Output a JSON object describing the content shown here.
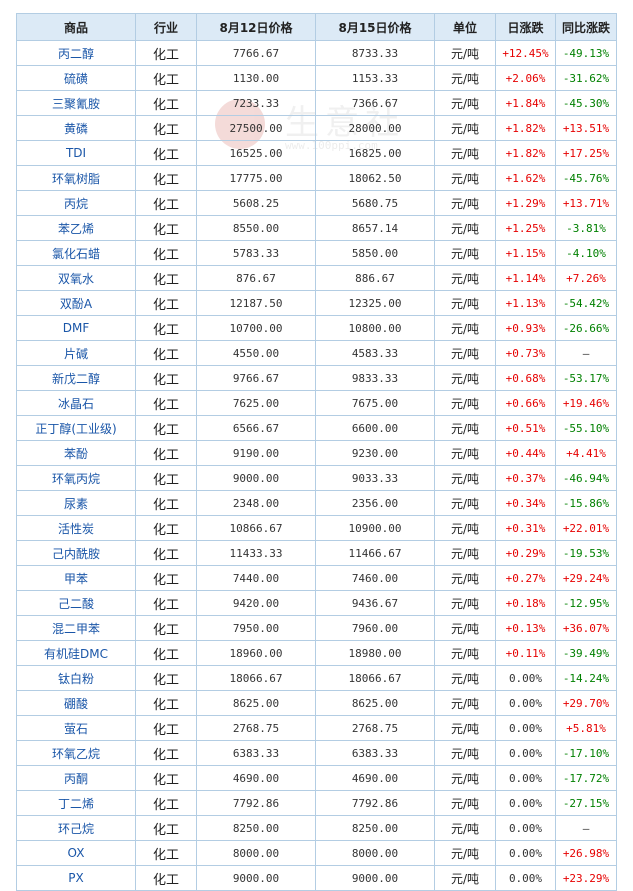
{
  "headers": [
    "商品",
    "行业",
    "8月12日价格",
    "8月15日价格",
    "单位",
    "日涨跌",
    "同比涨跌"
  ],
  "watermark": {
    "text": "生意社",
    "url": "www.100ppi.com"
  },
  "rows": [
    [
      "丙二醇",
      "化工",
      "7766.67",
      "8733.33",
      "元/吨",
      "+12.45%",
      "-49.13%"
    ],
    [
      "硫磺",
      "化工",
      "1130.00",
      "1153.33",
      "元/吨",
      "+2.06%",
      "-31.62%"
    ],
    [
      "三聚氰胺",
      "化工",
      "7233.33",
      "7366.67",
      "元/吨",
      "+1.84%",
      "-45.30%"
    ],
    [
      "黄磷",
      "化工",
      "27500.00",
      "28000.00",
      "元/吨",
      "+1.82%",
      "+13.51%"
    ],
    [
      "TDI",
      "化工",
      "16525.00",
      "16825.00",
      "元/吨",
      "+1.82%",
      "+17.25%"
    ],
    [
      "环氧树脂",
      "化工",
      "17775.00",
      "18062.50",
      "元/吨",
      "+1.62%",
      "-45.76%"
    ],
    [
      "丙烷",
      "化工",
      "5608.25",
      "5680.75",
      "元/吨",
      "+1.29%",
      "+13.71%"
    ],
    [
      "苯乙烯",
      "化工",
      "8550.00",
      "8657.14",
      "元/吨",
      "+1.25%",
      "-3.81%"
    ],
    [
      "氯化石蜡",
      "化工",
      "5783.33",
      "5850.00",
      "元/吨",
      "+1.15%",
      "-4.10%"
    ],
    [
      "双氧水",
      "化工",
      "876.67",
      "886.67",
      "元/吨",
      "+1.14%",
      "+7.26%"
    ],
    [
      "双酚A",
      "化工",
      "12187.50",
      "12325.00",
      "元/吨",
      "+1.13%",
      "-54.42%"
    ],
    [
      "DMF",
      "化工",
      "10700.00",
      "10800.00",
      "元/吨",
      "+0.93%",
      "-26.66%"
    ],
    [
      "片碱",
      "化工",
      "4550.00",
      "4583.33",
      "元/吨",
      "+0.73%",
      "—"
    ],
    [
      "新戊二醇",
      "化工",
      "9766.67",
      "9833.33",
      "元/吨",
      "+0.68%",
      "-53.17%"
    ],
    [
      "冰晶石",
      "化工",
      "7625.00",
      "7675.00",
      "元/吨",
      "+0.66%",
      "+19.46%"
    ],
    [
      "正丁醇(工业级)",
      "化工",
      "6566.67",
      "6600.00",
      "元/吨",
      "+0.51%",
      "-55.10%"
    ],
    [
      "苯酚",
      "化工",
      "9190.00",
      "9230.00",
      "元/吨",
      "+0.44%",
      "+4.41%"
    ],
    [
      "环氧丙烷",
      "化工",
      "9000.00",
      "9033.33",
      "元/吨",
      "+0.37%",
      "-46.94%"
    ],
    [
      "尿素",
      "化工",
      "2348.00",
      "2356.00",
      "元/吨",
      "+0.34%",
      "-15.86%"
    ],
    [
      "活性炭",
      "化工",
      "10866.67",
      "10900.00",
      "元/吨",
      "+0.31%",
      "+22.01%"
    ],
    [
      "己内酰胺",
      "化工",
      "11433.33",
      "11466.67",
      "元/吨",
      "+0.29%",
      "-19.53%"
    ],
    [
      "甲苯",
      "化工",
      "7440.00",
      "7460.00",
      "元/吨",
      "+0.27%",
      "+29.24%"
    ],
    [
      "己二酸",
      "化工",
      "9420.00",
      "9436.67",
      "元/吨",
      "+0.18%",
      "-12.95%"
    ],
    [
      "混二甲苯",
      "化工",
      "7950.00",
      "7960.00",
      "元/吨",
      "+0.13%",
      "+36.07%"
    ],
    [
      "有机硅DMC",
      "化工",
      "18960.00",
      "18980.00",
      "元/吨",
      "+0.11%",
      "-39.49%"
    ],
    [
      "钛白粉",
      "化工",
      "18066.67",
      "18066.67",
      "元/吨",
      "0.00%",
      "-14.24%"
    ],
    [
      "硼酸",
      "化工",
      "8625.00",
      "8625.00",
      "元/吨",
      "0.00%",
      "+29.70%"
    ],
    [
      "萤石",
      "化工",
      "2768.75",
      "2768.75",
      "元/吨",
      "0.00%",
      "+5.81%"
    ],
    [
      "环氧乙烷",
      "化工",
      "6383.33",
      "6383.33",
      "元/吨",
      "0.00%",
      "-17.10%"
    ],
    [
      "丙酮",
      "化工",
      "4690.00",
      "4690.00",
      "元/吨",
      "0.00%",
      "-17.72%"
    ],
    [
      "丁二烯",
      "化工",
      "7792.86",
      "7792.86",
      "元/吨",
      "0.00%",
      "-27.15%"
    ],
    [
      "环己烷",
      "化工",
      "8250.00",
      "8250.00",
      "元/吨",
      "0.00%",
      "—"
    ],
    [
      "OX",
      "化工",
      "8000.00",
      "8000.00",
      "元/吨",
      "0.00%",
      "+26.98%"
    ],
    [
      "PX",
      "化工",
      "9000.00",
      "9000.00",
      "元/吨",
      "0.00%",
      "+23.29%"
    ]
  ]
}
